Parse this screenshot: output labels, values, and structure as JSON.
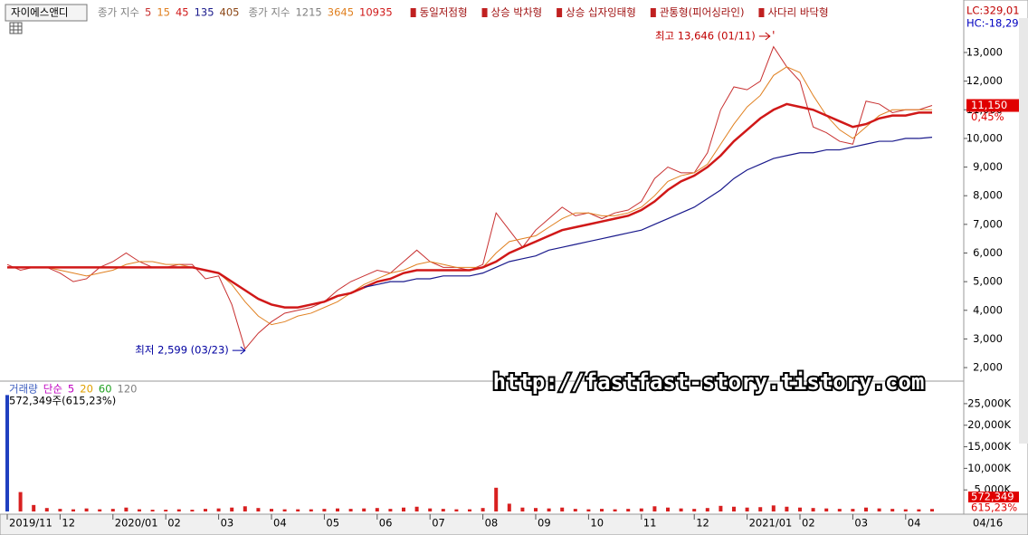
{
  "ticker": "자이에스앤디",
  "right_info": [
    "LC:329,01",
    "HC:-18,29"
  ],
  "watermark": "http://fastfast-story.tistory.com",
  "end_date": "04/16",
  "patterns": [
    "동일저점형",
    "상승 박차형",
    "상승 십자잉태형",
    "관통형(피어싱라인)",
    "사다리 바닥형"
  ],
  "categories": [
    "2019/11",
    null,
    null,
    null,
    "12",
    null,
    null,
    null,
    "2020/01",
    null,
    null,
    null,
    "02",
    null,
    null,
    null,
    "03",
    null,
    null,
    null,
    "04",
    null,
    null,
    null,
    "05",
    null,
    null,
    null,
    "06",
    null,
    null,
    null,
    "07",
    null,
    null,
    null,
    "08",
    null,
    null,
    null,
    "09",
    null,
    null,
    null,
    "10",
    null,
    null,
    null,
    "11",
    null,
    null,
    null,
    "12",
    null,
    null,
    null,
    "2021/01",
    null,
    null,
    null,
    "02",
    null,
    null,
    null,
    "03",
    null,
    null,
    null,
    "04",
    null,
    null
  ],
  "chart_data": [
    {
      "type": "line",
      "series_label": "종가 지수",
      "ylim": [
        1560,
        14200
      ],
      "yticks": [
        {
          "value": 2000,
          "label": "2,000"
        },
        {
          "value": 3000,
          "label": "3,000"
        },
        {
          "value": 4000,
          "label": "4,000"
        },
        {
          "value": 5000,
          "label": "5,000"
        },
        {
          "value": 6000,
          "label": "6,000"
        },
        {
          "value": 7000,
          "label": "7,000"
        },
        {
          "value": 8000,
          "label": "8,000"
        },
        {
          "value": 9000,
          "label": "9,000"
        },
        {
          "value": 10000,
          "label": "10,000"
        },
        {
          "value": 11000,
          "label": "11,000"
        },
        {
          "value": 12000,
          "label": "12,000"
        },
        {
          "value": 13000,
          "label": "13,000"
        }
      ],
      "series": [
        {
          "name": "5",
          "color": "#c83030",
          "line_width": 1,
          "values": [
            5600,
            5400,
            5500,
            5500,
            5300,
            5000,
            5100,
            5500,
            5700,
            6000,
            5700,
            5500,
            5500,
            5600,
            5600,
            5100,
            5200,
            4200,
            2650,
            3200,
            3600,
            3900,
            4000,
            4100,
            4300,
            4700,
            5000,
            5200,
            5400,
            5300,
            5700,
            6100,
            5700,
            5500,
            5500,
            5400,
            5600,
            7400,
            6800,
            6200,
            6800,
            7200,
            7600,
            7300,
            7400,
            7200,
            7400,
            7500,
            7800,
            8600,
            9000,
            8800,
            8800,
            9500,
            11000,
            11800,
            11700,
            12000,
            13200,
            12500,
            12000,
            10400,
            10200,
            9900,
            9800,
            11300,
            11200,
            10900,
            11000,
            11000,
            11150
          ]
        },
        {
          "name": "15",
          "color": "#e08020",
          "line_width": 1,
          "values": [
            5500,
            5500,
            5500,
            5500,
            5400,
            5300,
            5200,
            5300,
            5400,
            5600,
            5700,
            5700,
            5600,
            5600,
            5500,
            5400,
            5300,
            4900,
            4300,
            3800,
            3500,
            3600,
            3800,
            3900,
            4100,
            4300,
            4600,
            4900,
            5100,
            5300,
            5400,
            5600,
            5700,
            5600,
            5500,
            5500,
            5500,
            6000,
            6400,
            6500,
            6600,
            6900,
            7200,
            7400,
            7400,
            7300,
            7300,
            7400,
            7600,
            8000,
            8500,
            8700,
            8800,
            9100,
            9800,
            10500,
            11100,
            11500,
            12200,
            12500,
            12300,
            11500,
            10800,
            10300,
            10000,
            10400,
            10800,
            11000,
            11000,
            11000,
            11000
          ]
        },
        {
          "name": "45",
          "color": "#d01818",
          "line_width": 2.5,
          "values": [
            5500,
            5500,
            5500,
            5500,
            5500,
            5500,
            5500,
            5500,
            5500,
            5500,
            5500,
            5500,
            5500,
            5500,
            5500,
            5400,
            5300,
            5000,
            4700,
            4400,
            4200,
            4100,
            4100,
            4200,
            4300,
            4500,
            4600,
            4800,
            5000,
            5100,
            5300,
            5400,
            5400,
            5400,
            5400,
            5400,
            5500,
            5700,
            6000,
            6200,
            6400,
            6600,
            6800,
            6900,
            7000,
            7100,
            7200,
            7300,
            7500,
            7800,
            8200,
            8500,
            8700,
            9000,
            9400,
            9900,
            10300,
            10700,
            11000,
            11200,
            11100,
            11000,
            10800,
            10600,
            10400,
            10500,
            10700,
            10800,
            10800,
            10900,
            10900
          ]
        },
        {
          "name": "135",
          "color": "#1a1a8c",
          "line_width": 1.2,
          "values": [
            null,
            null,
            null,
            null,
            null,
            null,
            null,
            null,
            null,
            null,
            null,
            null,
            null,
            null,
            null,
            null,
            null,
            null,
            null,
            null,
            null,
            null,
            null,
            null,
            null,
            null,
            null,
            4800,
            4900,
            5000,
            5000,
            5100,
            5100,
            5200,
            5200,
            5200,
            5300,
            5500,
            5700,
            5800,
            5900,
            6100,
            6200,
            6300,
            6400,
            6500,
            6600,
            6700,
            6800,
            7000,
            7200,
            7400,
            7600,
            7900,
            8200,
            8600,
            8900,
            9100,
            9300,
            9400,
            9500,
            9500,
            9600,
            9600,
            9700,
            9800,
            9900,
            9900,
            10000,
            10000,
            10040
          ]
        }
      ],
      "extra_legend": [
        {
          "text": "405",
          "color": "#8b4513"
        }
      ],
      "index_legend": {
        "label": "종가 지수",
        "items": [
          {
            "text": "1215",
            "color": "#808080"
          },
          {
            "text": "3645",
            "color": "#e08020"
          },
          {
            "text": "10935",
            "color": "#d01818"
          }
        ]
      },
      "annotations": [
        {
          "text": "최고 13,646 (01/11)",
          "index": 58,
          "value": 13646,
          "side": "top"
        },
        {
          "text": "최저 2,599 (03/23)",
          "index": 18,
          "value": 2599,
          "side": "bottom"
        }
      ],
      "last_price": {
        "value": 11150,
        "label": "11,150",
        "change": "0,45%"
      }
    },
    {
      "type": "bar",
      "title": "거래량",
      "ma_label": "단순",
      "ma_legend": [
        {
          "text": "5",
          "color": "#c000c0"
        },
        {
          "text": "20",
          "color": "#e0a000"
        },
        {
          "text": "60",
          "color": "#20a020"
        },
        {
          "text": "120",
          "color": "#808080"
        }
      ],
      "info": "572,349주(615,23%)",
      "color": "#d82020",
      "ylim": [
        0,
        29600
      ],
      "yticks": [
        {
          "value": 5000,
          "label": "5,000K"
        },
        {
          "value": 10000,
          "label": "10,000K"
        },
        {
          "value": 15000,
          "label": "15,000K"
        },
        {
          "value": 20000,
          "label": "20,000K"
        },
        {
          "value": 25000,
          "label": "25,000K"
        }
      ],
      "values": [
        27000,
        4500,
        1500,
        800,
        600,
        500,
        700,
        500,
        600,
        900,
        500,
        400,
        400,
        500,
        400,
        600,
        700,
        900,
        1200,
        800,
        600,
        500,
        500,
        500,
        600,
        700,
        600,
        700,
        800,
        600,
        900,
        1100,
        700,
        600,
        500,
        500,
        800,
        5500,
        1800,
        900,
        800,
        700,
        900,
        600,
        500,
        600,
        500,
        600,
        700,
        1200,
        900,
        700,
        600,
        800,
        1300,
        1100,
        900,
        1000,
        1400,
        1100,
        900,
        800,
        700,
        600,
        600,
        900,
        700,
        600,
        500,
        500,
        572
      ],
      "value_labels": {
        "index": 70,
        "label": "572,349",
        "change": "615,23%"
      }
    }
  ]
}
